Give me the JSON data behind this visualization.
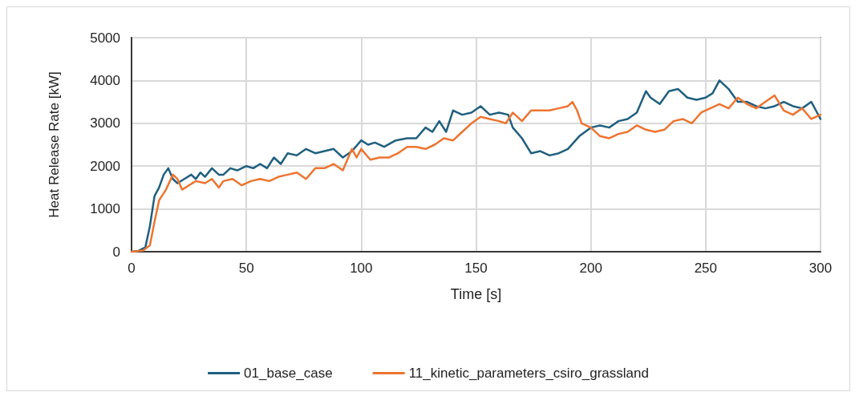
{
  "chart_data": {
    "type": "line",
    "xlabel": "Time [s]",
    "ylabel": "Heat Release Rate [kW]",
    "xlim": [
      0,
      300
    ],
    "xticks": [
      0,
      50,
      100,
      150,
      200,
      250,
      300
    ],
    "ylim": [
      0,
      5000
    ],
    "yticks": [
      0,
      1000,
      2000,
      3000,
      4000,
      5000
    ],
    "grid": true,
    "legend": "bottom",
    "marker": "none",
    "line_style": "solid",
    "series": [
      {
        "name": "01_base_case",
        "color": "#1f5f7f",
        "x": [
          0,
          3,
          6,
          8,
          10,
          12,
          14,
          16,
          18,
          20,
          23,
          26,
          28,
          30,
          32,
          35,
          38,
          40,
          43,
          46,
          50,
          53,
          56,
          59,
          62,
          65,
          68,
          72,
          76,
          80,
          84,
          88,
          92,
          96,
          100,
          103,
          106,
          110,
          115,
          120,
          124,
          128,
          131,
          134,
          137,
          140,
          144,
          148,
          152,
          156,
          160,
          164,
          166,
          170,
          174,
          178,
          182,
          186,
          190,
          195,
          200,
          204,
          208,
          212,
          216,
          220,
          224,
          226,
          230,
          234,
          238,
          242,
          246,
          250,
          253,
          256,
          260,
          264,
          268,
          272,
          276,
          280,
          284,
          288,
          292,
          296,
          298,
          300
        ],
        "values": [
          0,
          20,
          100,
          600,
          1300,
          1500,
          1800,
          1950,
          1700,
          1600,
          1700,
          1800,
          1700,
          1850,
          1750,
          1950,
          1800,
          1800,
          1950,
          1900,
          2000,
          1950,
          2050,
          1950,
          2200,
          2050,
          2300,
          2250,
          2400,
          2300,
          2350,
          2400,
          2200,
          2350,
          2600,
          2500,
          2550,
          2450,
          2600,
          2650,
          2650,
          2900,
          2800,
          3050,
          2800,
          3300,
          3200,
          3250,
          3400,
          3200,
          3250,
          3200,
          2900,
          2650,
          2300,
          2350,
          2250,
          2300,
          2400,
          2700,
          2900,
          2950,
          2900,
          3050,
          3100,
          3250,
          3750,
          3600,
          3450,
          3750,
          3800,
          3600,
          3550,
          3600,
          3700,
          4000,
          3800,
          3500,
          3500,
          3400,
          3350,
          3400,
          3500,
          3400,
          3350,
          3500,
          3300,
          3100
        ]
      },
      {
        "name": "11_kinetic_parameters_csiro_grassland",
        "color": "#ed7430",
        "x": [
          0,
          5,
          8,
          10,
          12,
          15,
          18,
          20,
          22,
          25,
          28,
          32,
          35,
          38,
          40,
          44,
          48,
          52,
          56,
          60,
          64,
          68,
          72,
          76,
          80,
          84,
          88,
          92,
          96,
          98,
          100,
          104,
          108,
          112,
          116,
          120,
          124,
          128,
          132,
          136,
          140,
          144,
          148,
          152,
          156,
          160,
          163,
          166,
          170,
          174,
          178,
          182,
          186,
          190,
          192,
          194,
          196,
          200,
          204,
          208,
          212,
          216,
          220,
          224,
          228,
          232,
          236,
          240,
          244,
          248,
          252,
          256,
          260,
          264,
          268,
          272,
          276,
          280,
          284,
          288,
          292,
          296,
          300
        ],
        "values": [
          0,
          30,
          150,
          700,
          1200,
          1450,
          1800,
          1700,
          1450,
          1550,
          1650,
          1600,
          1700,
          1500,
          1650,
          1700,
          1550,
          1650,
          1700,
          1650,
          1750,
          1800,
          1850,
          1700,
          1950,
          1950,
          2050,
          1900,
          2400,
          2200,
          2400,
          2150,
          2200,
          2200,
          2300,
          2450,
          2450,
          2400,
          2500,
          2650,
          2600,
          2800,
          3000,
          3150,
          3100,
          3050,
          3000,
          3250,
          3050,
          3300,
          3300,
          3300,
          3350,
          3400,
          3500,
          3300,
          3000,
          2900,
          2700,
          2650,
          2750,
          2800,
          2950,
          2850,
          2800,
          2850,
          3050,
          3100,
          3000,
          3250,
          3350,
          3450,
          3350,
          3600,
          3450,
          3350,
          3500,
          3650,
          3300,
          3200,
          3350,
          3100,
          3200
        ]
      }
    ]
  }
}
